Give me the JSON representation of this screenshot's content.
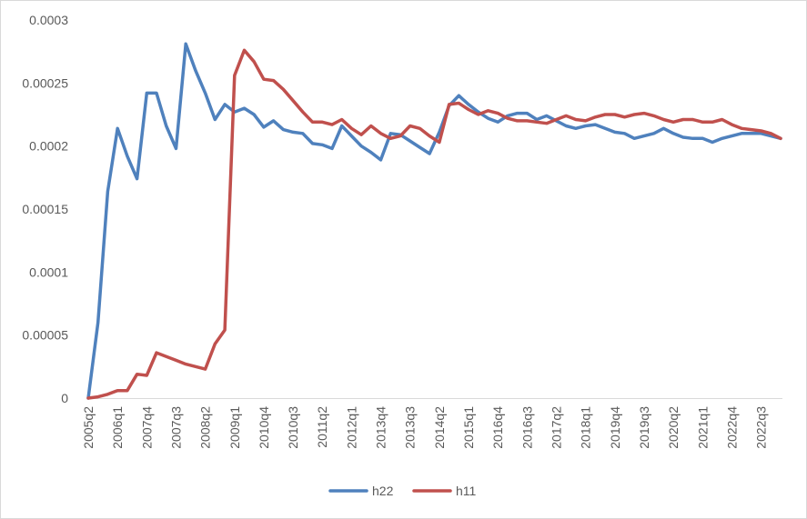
{
  "chart_data": {
    "type": "line",
    "title": "",
    "xlabel": "",
    "ylabel": "",
    "ylim": [
      0,
      0.0003
    ],
    "y_ticks": [
      "0",
      "0.00005",
      "0.0001",
      "0.00015",
      "0.0002",
      "0.00025",
      "0.0003"
    ],
    "y_tick_values": [
      0,
      5e-05,
      0.0001,
      0.00015,
      0.0002,
      0.00025,
      0.0003
    ],
    "x_tick_labels": [
      "2005q2",
      "2006q1",
      "2007q4",
      "2007q3",
      "2008q2",
      "2009q1",
      "2010q4",
      "2010q3",
      "2011q2",
      "2012q1",
      "2013q4",
      "2013q3",
      "2014q2",
      "2015q1",
      "2016q4",
      "2016q3",
      "2017q2",
      "2018q1",
      "2019q4",
      "2019q3",
      "2020q2",
      "2021q1",
      "2022q4",
      "2022q3"
    ],
    "x_tick_every": 3,
    "n_points": 72,
    "grid": false,
    "legend_position": "bottom",
    "series": [
      {
        "name": "h22",
        "color": "#4F81BD",
        "values": [
          0,
          5.99e-05,
          0.000164,
          0.000214,
          0.000192,
          0.000174,
          0.000242,
          0.000242,
          0.000216,
          0.000198,
          0.000281,
          0.00026,
          0.000242,
          0.000221,
          0.000233,
          0.000227,
          0.00023,
          0.000225,
          0.000215,
          0.00022,
          0.000213,
          0.000211,
          0.00021,
          0.000202,
          0.000201,
          0.000198,
          0.000216,
          0.000208,
          0.0002,
          0.000195,
          0.000189,
          0.00021,
          0.000209,
          0.000204,
          0.000199,
          0.000194,
          0.000211,
          0.000232,
          0.00024,
          0.000233,
          0.000227,
          0.000222,
          0.000219,
          0.000224,
          0.000226,
          0.000226,
          0.000221,
          0.000224,
          0.00022,
          0.000216,
          0.000214,
          0.000216,
          0.000217,
          0.000214,
          0.000211,
          0.00021,
          0.000206,
          0.000208,
          0.00021,
          0.000214,
          0.00021,
          0.000207,
          0.000206,
          0.000206,
          0.000203,
          0.000206,
          0.000208,
          0.00021,
          0.00021,
          0.00021,
          0.000208,
          0.000206
        ]
      },
      {
        "name": "h11",
        "color": "#C0504D",
        "values": [
          0,
          1e-06,
          3e-06,
          6e-06,
          6e-06,
          1.9e-05,
          1.8e-05,
          3.6e-05,
          3.3e-05,
          3e-05,
          2.7e-05,
          2.5e-05,
          2.3e-05,
          4.3e-05,
          5.4e-05,
          0.000256,
          0.000276,
          0.000267,
          0.000253,
          0.000252,
          0.000245,
          0.000236,
          0.000227,
          0.000219,
          0.000219,
          0.000217,
          0.000221,
          0.000214,
          0.000209,
          0.000216,
          0.00021,
          0.000206,
          0.000208,
          0.000216,
          0.000214,
          0.000208,
          0.000203,
          0.000233,
          0.000234,
          0.000229,
          0.000225,
          0.000228,
          0.000226,
          0.000222,
          0.00022,
          0.00022,
          0.000219,
          0.000218,
          0.000221,
          0.000224,
          0.000221,
          0.00022,
          0.000223,
          0.000225,
          0.000225,
          0.000223,
          0.000225,
          0.000226,
          0.000224,
          0.000221,
          0.000219,
          0.000221,
          0.000221,
          0.000219,
          0.000219,
          0.000221,
          0.000217,
          0.000214,
          0.000213,
          0.000212,
          0.00021,
          0.000206
        ]
      }
    ]
  }
}
